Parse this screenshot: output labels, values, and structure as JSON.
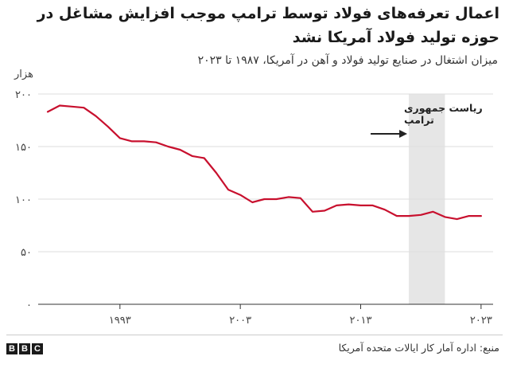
{
  "title": "اعمال تعرفه‌های فولاد توسط ترامپ موجب افزایش مشاغل در حوزه تولید فولاد آمریکا نشد",
  "subtitle": "میزان اشتغال در صنایع تولید فولاد و آهن در آمریکا، ۱۹۸۷ تا ۲۰۲۳",
  "source": "منبع: اداره آمار کار ایالات متحده آمریکا",
  "brand": {
    "letters": [
      "B",
      "B",
      "C"
    ]
  },
  "chart_data": {
    "type": "line",
    "ylabel": "هزار",
    "ylim": [
      0,
      200
    ],
    "xlim": [
      1987,
      2024
    ],
    "y_ticks": [
      {
        "value": 0,
        "label": "۰"
      },
      {
        "value": 50,
        "label": "۵۰"
      },
      {
        "value": 100,
        "label": "۱۰۰"
      },
      {
        "value": 150,
        "label": "۱۵۰"
      },
      {
        "value": 200,
        "label": "۲۰۰"
      }
    ],
    "x_ticks": [
      {
        "value": 1993,
        "label": "۱۹۹۳"
      },
      {
        "value": 2003,
        "label": "۲۰۰۳"
      },
      {
        "value": 2013,
        "label": "۲۰۱۳"
      },
      {
        "value": 2023,
        "label": "۲۰۲۳"
      }
    ],
    "grid": true,
    "color": "#c8102e",
    "x": [
      1987,
      1988,
      1989,
      1990,
      1991,
      1992,
      1993,
      1994,
      1995,
      1996,
      1997,
      1998,
      1999,
      2000,
      2001,
      2002,
      2003,
      2004,
      2005,
      2006,
      2007,
      2008,
      2009,
      2010,
      2011,
      2012,
      2013,
      2014,
      2015,
      2016,
      2017,
      2018,
      2019,
      2020,
      2021,
      2022,
      2023
    ],
    "values": [
      183,
      189,
      188,
      187,
      179,
      169,
      158,
      155,
      155,
      154,
      150,
      147,
      141,
      139,
      125,
      109,
      104,
      97,
      100,
      100,
      102,
      101,
      88,
      89,
      94,
      95,
      94,
      94,
      90,
      84,
      84,
      85,
      88,
      83,
      81,
      84,
      84
    ],
    "annotation": {
      "label_line1": "ریاست جمهوری",
      "label_line2": "ترامپ",
      "shade_start": 2017,
      "shade_end": 2020,
      "shade_color": "#e6e6e6"
    }
  }
}
